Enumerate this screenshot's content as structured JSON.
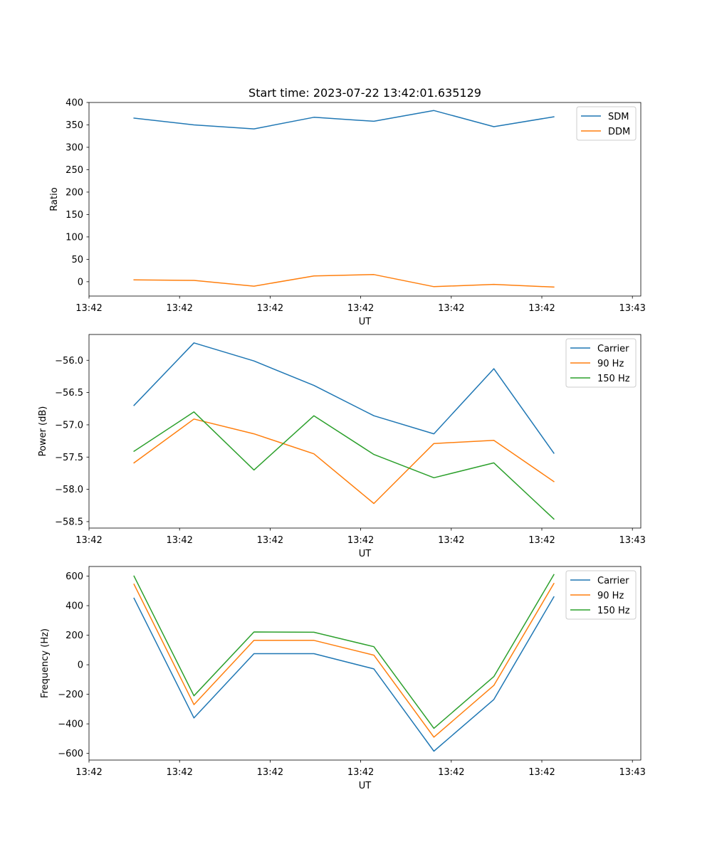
{
  "figure_title": "Start time: 2023-07-22 13:42:01.635129",
  "colors": {
    "blue": "#1f77b4",
    "orange": "#ff7f0e",
    "green": "#2ca02c",
    "axis": "#000000",
    "legend_border": "#cccccc"
  },
  "chart_data": [
    {
      "type": "line",
      "name": "ratio",
      "title": "Start time: 2023-07-22 13:42:01.635129",
      "xlabel": "UT",
      "ylabel": "Ratio",
      "x": [
        0,
        1,
        2,
        3,
        4,
        5,
        6,
        7
      ],
      "xlim": [
        -0.75,
        8.45
      ],
      "xticks": [
        -0.75,
        0.76,
        2.27,
        3.78,
        5.29,
        6.8,
        8.31
      ],
      "xtick_labels": [
        "13:42",
        "13:42",
        "13:42",
        "13:42",
        "13:42",
        "13:42",
        "13:43"
      ],
      "ylim": [
        -32,
        400
      ],
      "yticks": [
        0,
        50,
        100,
        150,
        200,
        250,
        300,
        350,
        400
      ],
      "ytick_labels": [
        "0",
        "50",
        "100",
        "150",
        "200",
        "250",
        "300",
        "350",
        "400"
      ],
      "legend": "top-right",
      "grid": false,
      "series": [
        {
          "name": "SDM",
          "color": "#1f77b4",
          "values": [
            365,
            350,
            341,
            367,
            358,
            382,
            346,
            368
          ]
        },
        {
          "name": "DDM",
          "color": "#ff7f0e",
          "values": [
            4,
            3,
            -10,
            13,
            16,
            -11,
            -6,
            -12
          ]
        }
      ]
    },
    {
      "type": "line",
      "name": "power",
      "xlabel": "UT",
      "ylabel": "Power (dB)",
      "x": [
        0,
        1,
        2,
        3,
        4,
        5,
        6,
        7
      ],
      "xlim": [
        -0.75,
        8.45
      ],
      "xticks": [
        -0.75,
        0.76,
        2.27,
        3.78,
        5.29,
        6.8,
        8.31
      ],
      "xtick_labels": [
        "13:42",
        "13:42",
        "13:42",
        "13:42",
        "13:42",
        "13:42",
        "13:43"
      ],
      "ylim": [
        -58.6,
        -55.6
      ],
      "yticks": [
        -58.5,
        -58.0,
        -57.5,
        -57.0,
        -56.5,
        -56.0
      ],
      "ytick_labels": [
        "−58.5",
        "−58.0",
        "−57.5",
        "−57.0",
        "−56.5",
        "−56.0"
      ],
      "legend": "top-right",
      "grid": false,
      "series": [
        {
          "name": "Carrier",
          "color": "#1f77b4",
          "values": [
            -56.7,
            -55.73,
            -56.01,
            -56.39,
            -56.86,
            -57.14,
            -56.13,
            -57.44
          ]
        },
        {
          "name": "90 Hz",
          "color": "#ff7f0e",
          "values": [
            -57.59,
            -56.91,
            -57.14,
            -57.45,
            -58.22,
            -57.29,
            -57.24,
            -57.88
          ]
        },
        {
          "name": "150 Hz",
          "color": "#2ca02c",
          "values": [
            -57.41,
            -56.8,
            -57.7,
            -56.86,
            -57.46,
            -57.82,
            -57.59,
            -58.46
          ]
        }
      ]
    },
    {
      "type": "line",
      "name": "frequency",
      "xlabel": "UT",
      "ylabel": "Frequency (Hz)",
      "x": [
        0,
        1,
        2,
        3,
        4,
        5,
        6,
        7
      ],
      "xlim": [
        -0.75,
        8.45
      ],
      "xticks": [
        -0.75,
        0.76,
        2.27,
        3.78,
        5.29,
        6.8,
        8.31
      ],
      "xtick_labels": [
        "13:42",
        "13:42",
        "13:42",
        "13:42",
        "13:42",
        "13:42",
        "13:43"
      ],
      "ylim": [
        -645,
        665
      ],
      "yticks": [
        -600,
        -400,
        -200,
        0,
        200,
        400,
        600
      ],
      "ytick_labels": [
        "−600",
        "−400",
        "−200",
        "0",
        "200",
        "400",
        "600"
      ],
      "legend": "top-right",
      "grid": false,
      "series": [
        {
          "name": "Carrier",
          "color": "#1f77b4",
          "values": [
            450,
            -360,
            75,
            75,
            -28,
            -585,
            -235,
            460
          ]
        },
        {
          "name": "90 Hz",
          "color": "#ff7f0e",
          "values": [
            545,
            -270,
            165,
            165,
            65,
            -490,
            -140,
            550
          ]
        },
        {
          "name": "150 Hz",
          "color": "#2ca02c",
          "values": [
            600,
            -210,
            222,
            220,
            122,
            -430,
            -80,
            610
          ]
        }
      ]
    }
  ]
}
